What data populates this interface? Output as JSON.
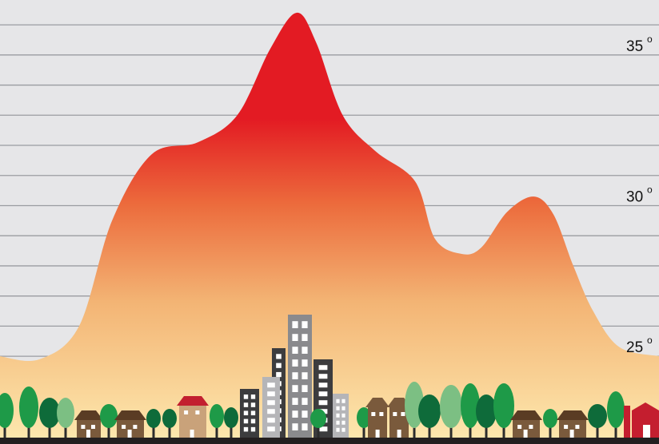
{
  "chart_data": {
    "type": "area",
    "title": "",
    "xlabel": "",
    "ylabel": "",
    "y_unit_symbol": "o",
    "yticks": [
      {
        "value": 25,
        "label": "25"
      },
      {
        "value": 30,
        "label": "30"
      },
      {
        "value": 35,
        "label": "35"
      }
    ],
    "ylim": [
      22.3,
      36.4
    ],
    "grid": true,
    "x": [
      0,
      0.06,
      0.12,
      0.17,
      0.23,
      0.3,
      0.36,
      0.41,
      0.45,
      0.48,
      0.52,
      0.57,
      0.63,
      0.66,
      0.7,
      0.73,
      0.77,
      0.81,
      0.84,
      0.87,
      0.9,
      0.94,
      1
    ],
    "values": [
      25.0,
      24.9,
      26.0,
      29.5,
      31.7,
      32.1,
      33.0,
      35.2,
      36.4,
      35.4,
      33.0,
      31.8,
      30.8,
      28.9,
      28.4,
      28.6,
      29.8,
      30.3,
      29.7,
      28.0,
      26.5,
      25.3,
      25.0
    ],
    "colors": {
      "peak": "#e31b23",
      "mid": "#ec6b3c",
      "low": "#f3b474",
      "base": "#fde7ad",
      "background": "#e6e6e8",
      "gridline": "#9a9ca1"
    }
  },
  "skyline": {
    "tree_colors": [
      "#1e9a48",
      "#0e6b3a",
      "#7cbf83",
      "#2f9d4a"
    ],
    "house_color": "#7a5a3c",
    "house_roof_color": "#5a3c24",
    "red_house_roof_color": "#c21f2f",
    "tan_house_color": "#c9a27a",
    "building_dark": "#3c3c3e",
    "building_mid": "#8a8a8d",
    "building_light": "#b5b5b8",
    "red_barn_color": "#c41e2f",
    "ground_color": "#231f20"
  }
}
